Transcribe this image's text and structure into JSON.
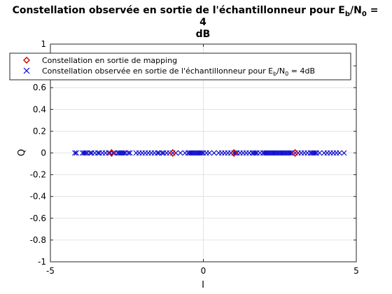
{
  "chart_data": {
    "type": "scatter",
    "title": {
      "line1_prefix": "Constellation observée en sortie de l'échantillonneur pour E",
      "sub_b": "b",
      "slash_n": "/N",
      "sub_0": "0",
      "line1_suffix": " =",
      "line2": "4",
      "line3": "dB"
    },
    "xlabel": "I",
    "ylabel": "Q",
    "xlim": [
      -5,
      5
    ],
    "ylim": [
      -1,
      1
    ],
    "xticks": [
      -5,
      0,
      5
    ],
    "yticks": [
      -1,
      -0.8,
      -0.6,
      -0.4,
      -0.2,
      0,
      0.2,
      0.4,
      0.6,
      0.8,
      1
    ],
    "grid": true,
    "legend_position": "top-left",
    "series": [
      {
        "name": "Constellation en sortie de mapping",
        "marker": "diamond",
        "color": "#cc0000",
        "x": [
          -3,
          -1,
          1,
          3
        ],
        "y": [
          0,
          0,
          0,
          0
        ]
      },
      {
        "name_prefix": "Constellation observée en sortie de l'échantillonneur pour E",
        "name_sub_b": "b",
        "name_slash_n": "/N",
        "name_sub_0": "0",
        "name_suffix": " = 4dB",
        "marker": "x",
        "color": "#0000cc",
        "x": [
          -4.2,
          -4.15,
          -3.95,
          -3.9,
          -3.85,
          -3.8,
          -3.7,
          -3.65,
          -3.55,
          -3.45,
          -3.4,
          -3.3,
          -3.2,
          -3.1,
          -3.05,
          -2.95,
          -2.9,
          -2.8,
          -2.75,
          -2.7,
          -2.65,
          -2.6,
          -2.55,
          -2.45,
          -2.4,
          -2.2,
          -2.1,
          -2.0,
          -1.9,
          -1.8,
          -1.7,
          -1.6,
          -1.5,
          -1.45,
          -1.35,
          -1.3,
          -1.2,
          -1.1,
          -1.0,
          -0.9,
          -0.75,
          -0.6,
          -0.5,
          -0.45,
          -0.4,
          -0.35,
          -0.3,
          -0.25,
          -0.2,
          -0.15,
          -0.1,
          -0.05,
          0.0,
          0.1,
          0.2,
          0.35,
          0.5,
          0.6,
          0.7,
          0.8,
          0.9,
          1.0,
          1.05,
          1.1,
          1.2,
          1.3,
          1.4,
          1.5,
          1.6,
          1.65,
          1.7,
          1.75,
          1.85,
          1.95,
          2.0,
          2.05,
          2.1,
          2.15,
          2.2,
          2.25,
          2.3,
          2.35,
          2.4,
          2.45,
          2.5,
          2.55,
          2.6,
          2.65,
          2.7,
          2.75,
          2.8,
          2.85,
          2.9,
          3.0,
          3.1,
          3.2,
          3.3,
          3.4,
          3.5,
          3.55,
          3.6,
          3.65,
          3.7,
          3.8,
          3.95,
          4.05,
          4.15,
          4.25,
          4.35,
          4.45,
          4.6
        ],
        "y_constant": 0
      }
    ]
  }
}
